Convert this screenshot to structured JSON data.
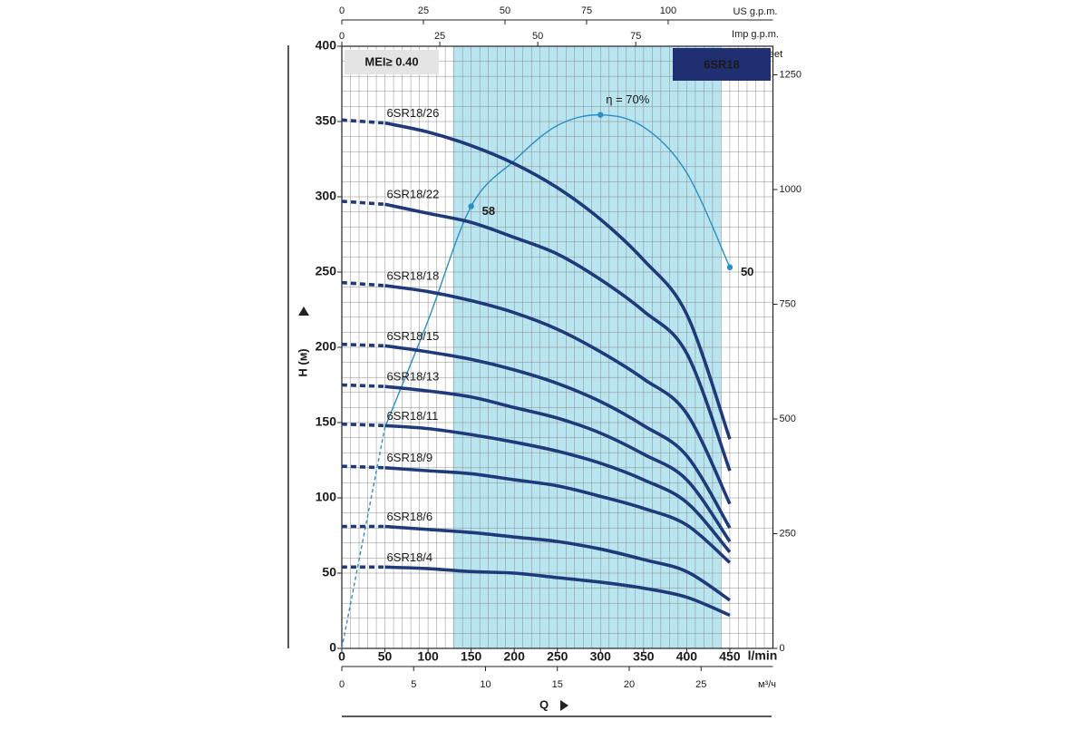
{
  "chart_data": {
    "type": "line",
    "title": "6SR18",
    "badge": "MEI≥ 0.40",
    "x_label": "Q",
    "x_unit": "l/min",
    "y_label": "H (м)",
    "y2_unit": "feet",
    "x": [
      0,
      50,
      100,
      150,
      200,
      250,
      300,
      350,
      400,
      450
    ],
    "xlim": [
      0,
      500
    ],
    "xticks": [
      0,
      50,
      100,
      150,
      200,
      250,
      300,
      350,
      400,
      450
    ],
    "ylim": [
      0,
      400
    ],
    "yticks": [
      0,
      50,
      100,
      150,
      200,
      250,
      300,
      350,
      400
    ],
    "y2lim": [
      0,
      1312.3
    ],
    "y2ticks": [
      0,
      250,
      500,
      750,
      1000,
      1250
    ],
    "top_axes": [
      {
        "unit": "US g.p.m.",
        "xlim": [
          0,
          132.1
        ],
        "xticks": [
          0,
          25,
          50,
          75,
          100
        ]
      },
      {
        "unit": "Imp g.p.m.",
        "xlim": [
          0,
          110
        ],
        "xticks": [
          0,
          25,
          50,
          75
        ]
      }
    ],
    "bottom_axis": {
      "unit": "м³/ч",
      "xlim": [
        0,
        30
      ],
      "xticks": [
        0,
        5,
        10,
        15,
        20,
        25
      ]
    },
    "grid": true,
    "grid_step": [
      10,
      10
    ],
    "dashed_below_x": 50,
    "shaded_range": [
      129,
      440
    ],
    "shaded_color": "#b9e5f0",
    "series": [
      {
        "name": "6SR18/26",
        "color": "#1f3a7a",
        "values": [
          351,
          349,
          343,
          334,
          322,
          306,
          285,
          258,
          222,
          139
        ]
      },
      {
        "name": "6SR18/22",
        "color": "#1f3a7a",
        "values": [
          297,
          295,
          289,
          283,
          273,
          262,
          245,
          224,
          196,
          118
        ]
      },
      {
        "name": "6SR18/18",
        "color": "#1f3a7a",
        "values": [
          243,
          241,
          237,
          231,
          223,
          212,
          197,
          179,
          156,
          96
        ]
      },
      {
        "name": "6SR18/15",
        "color": "#1f3a7a",
        "values": [
          202,
          201,
          197,
          192,
          185,
          176,
          164,
          148,
          128,
          80
        ]
      },
      {
        "name": "6SR18/13",
        "color": "#1f3a7a",
        "values": [
          175,
          174,
          171,
          167,
          160,
          153,
          143,
          129,
          112,
          71
        ]
      },
      {
        "name": "6SR18/11",
        "color": "#1f3a7a",
        "values": [
          149,
          148,
          146,
          142,
          137,
          131,
          123,
          112,
          97,
          64
        ]
      },
      {
        "name": "6SR18/9",
        "color": "#1f3a7a",
        "values": [
          121,
          120,
          118,
          116,
          112,
          108,
          101,
          93,
          82,
          57
        ]
      },
      {
        "name": "6SR18/6",
        "color": "#1f3a7a",
        "values": [
          81,
          81,
          79,
          77,
          74,
          71,
          66,
          59,
          51,
          32
        ]
      },
      {
        "name": "6SR18/4",
        "color": "#1f3a7a",
        "values": [
          54,
          54,
          53,
          51,
          50,
          47,
          44,
          40,
          34,
          22
        ]
      }
    ],
    "efficiency": {
      "color": "#2a8fc1",
      "lim": [
        0,
        79
      ],
      "values": [
        0,
        29,
        43,
        58,
        64,
        68.6,
        70,
        68.4,
        62.4,
        50
      ],
      "value_labels": [
        null,
        null,
        null,
        "58",
        null,
        null,
        "η = 70%",
        null,
        null,
        "50"
      ]
    }
  }
}
